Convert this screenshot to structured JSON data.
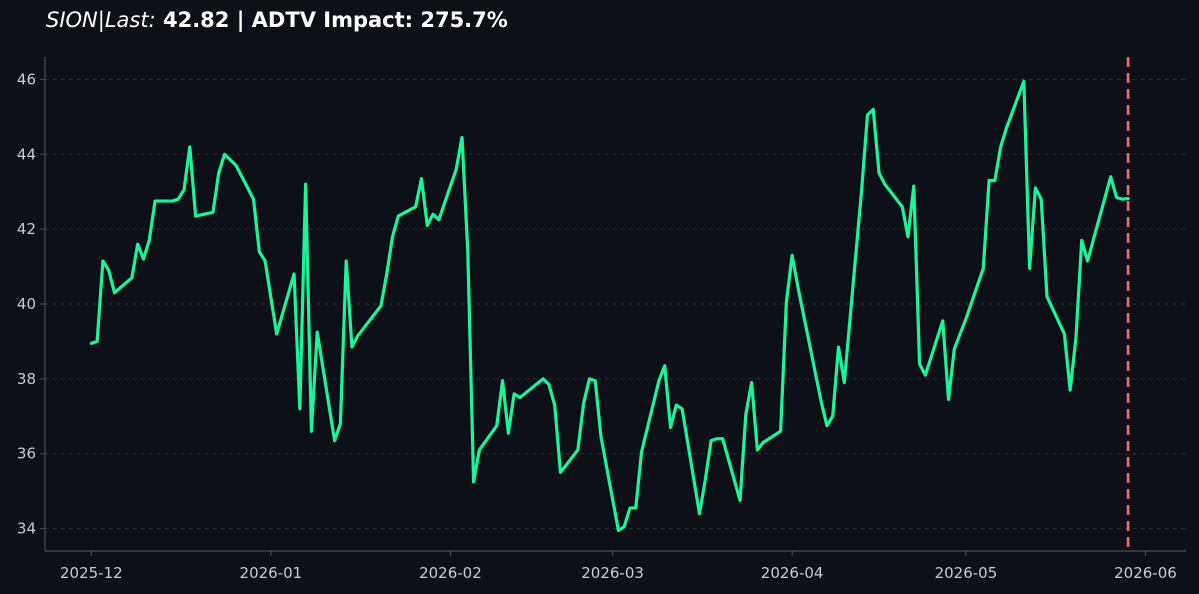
{
  "title": {
    "ticker": "SION|Last:",
    "rest": " 42.82 | ADTV Impact: 275.7%"
  },
  "colors": {
    "background": "#0d1017",
    "line": "#19f59a",
    "marker": "#f26b63",
    "axis": "#4a4e57",
    "grid": "#2a2e36",
    "tick_text": "#c9ccd2"
  },
  "chart_data": {
    "type": "line",
    "title": "SION|Last: 42.82 | ADTV Impact: 275.7%",
    "xlabel": "",
    "ylabel": "",
    "xlim": [
      "2025-11-23",
      "2026-06-08"
    ],
    "ylim": [
      33.4,
      46.6
    ],
    "grid": "horizontal dashed",
    "x_ticks": [
      "2025-12",
      "2026-01",
      "2026-02",
      "2026-03",
      "2026-04",
      "2026-05",
      "2026-06"
    ],
    "y_ticks": [
      34,
      36,
      38,
      40,
      42,
      44,
      46
    ],
    "vertical_marker": {
      "x": "2026-05-29",
      "style": "dashed"
    },
    "series": [
      {
        "x": [
          "2025-12-01",
          "2025-12-02",
          "2025-12-03",
          "2025-12-04",
          "2025-12-05",
          "2025-12-08",
          "2025-12-09",
          "2025-12-10",
          "2025-12-11",
          "2025-12-12",
          "2025-12-15",
          "2025-12-16",
          "2025-12-17",
          "2025-12-18",
          "2025-12-19",
          "2025-12-22",
          "2025-12-23",
          "2025-12-24",
          "2025-12-26",
          "2025-12-29",
          "2025-12-30",
          "2025-12-31",
          "2026-01-02",
          "2026-01-05",
          "2026-01-06",
          "2026-01-07",
          "2026-01-08",
          "2026-01-09",
          "2026-01-12",
          "2026-01-13",
          "2026-01-14",
          "2026-01-15",
          "2026-01-16",
          "2026-01-20",
          "2026-01-21",
          "2026-01-22",
          "2026-01-23",
          "2026-01-26",
          "2026-01-27",
          "2026-01-28",
          "2026-01-29",
          "2026-01-30",
          "2026-02-02",
          "2026-02-03",
          "2026-02-04",
          "2026-02-05",
          "2026-02-06",
          "2026-02-09",
          "2026-02-10",
          "2026-02-11",
          "2026-02-12",
          "2026-02-13",
          "2026-02-17",
          "2026-02-18",
          "2026-02-19",
          "2026-02-20",
          "2026-02-23",
          "2026-02-24",
          "2026-02-25",
          "2026-02-26",
          "2026-02-27",
          "2026-03-02",
          "2026-03-03",
          "2026-03-04",
          "2026-03-05",
          "2026-03-06",
          "2026-03-09",
          "2026-03-10",
          "2026-03-11",
          "2026-03-12",
          "2026-03-13",
          "2026-03-16",
          "2026-03-17",
          "2026-03-18",
          "2026-03-19",
          "2026-03-20",
          "2026-03-23",
          "2026-03-24",
          "2026-03-25",
          "2026-03-26",
          "2026-03-27",
          "2026-03-30",
          "2026-03-31",
          "2026-04-01",
          "2026-04-02",
          "2026-04-06",
          "2026-04-07",
          "2026-04-08",
          "2026-04-09",
          "2026-04-10",
          "2026-04-13",
          "2026-04-14",
          "2026-04-15",
          "2026-04-16",
          "2026-04-17",
          "2026-04-20",
          "2026-04-21",
          "2026-04-22",
          "2026-04-23",
          "2026-04-24",
          "2026-04-27",
          "2026-04-28",
          "2026-04-29",
          "2026-04-30",
          "2026-05-01",
          "2026-05-04",
          "2026-05-05",
          "2026-05-06",
          "2026-05-07",
          "2026-05-08",
          "2026-05-11",
          "2026-05-12",
          "2026-05-13",
          "2026-05-14",
          "2026-05-15",
          "2026-05-18",
          "2026-05-19",
          "2026-05-20",
          "2026-05-21",
          "2026-05-22",
          "2026-05-26",
          "2026-05-27",
          "2026-05-28",
          "2026-05-29"
        ],
        "values": [
          38.95,
          39.0,
          41.15,
          40.9,
          40.3,
          40.7,
          41.6,
          41.2,
          41.7,
          42.75,
          42.75,
          42.8,
          43.05,
          44.2,
          42.35,
          42.45,
          43.5,
          44.0,
          43.7,
          42.8,
          41.4,
          41.15,
          39.2,
          40.8,
          37.2,
          43.2,
          36.6,
          39.25,
          36.35,
          36.8,
          41.15,
          38.85,
          39.15,
          39.95,
          40.8,
          41.8,
          42.35,
          42.6,
          43.35,
          42.1,
          42.4,
          42.25,
          43.6,
          44.45,
          41.4,
          35.25,
          36.1,
          36.75,
          37.95,
          36.55,
          37.6,
          37.5,
          38.0,
          37.85,
          37.3,
          35.5,
          36.1,
          37.35,
          38.0,
          37.95,
          36.45,
          33.95,
          34.05,
          34.55,
          34.55,
          36.05,
          37.95,
          38.35,
          36.7,
          37.3,
          37.2,
          34.4,
          35.3,
          36.35,
          36.4,
          36.4,
          34.75,
          37.05,
          37.9,
          36.1,
          36.3,
          36.6,
          40.05,
          41.3,
          40.45,
          37.4,
          36.75,
          37.0,
          38.85,
          37.9,
          43.05,
          45.05,
          45.2,
          43.5,
          43.2,
          42.6,
          41.8,
          43.15,
          38.4,
          38.1,
          39.55,
          37.45,
          38.8,
          39.2,
          39.6,
          40.95,
          43.3,
          43.3,
          44.2,
          44.7,
          45.95,
          40.95,
          43.1,
          42.8,
          40.2,
          39.2,
          37.7,
          39.1,
          41.7,
          41.15,
          43.4,
          42.85,
          42.8,
          42.82
        ]
      }
    ]
  }
}
